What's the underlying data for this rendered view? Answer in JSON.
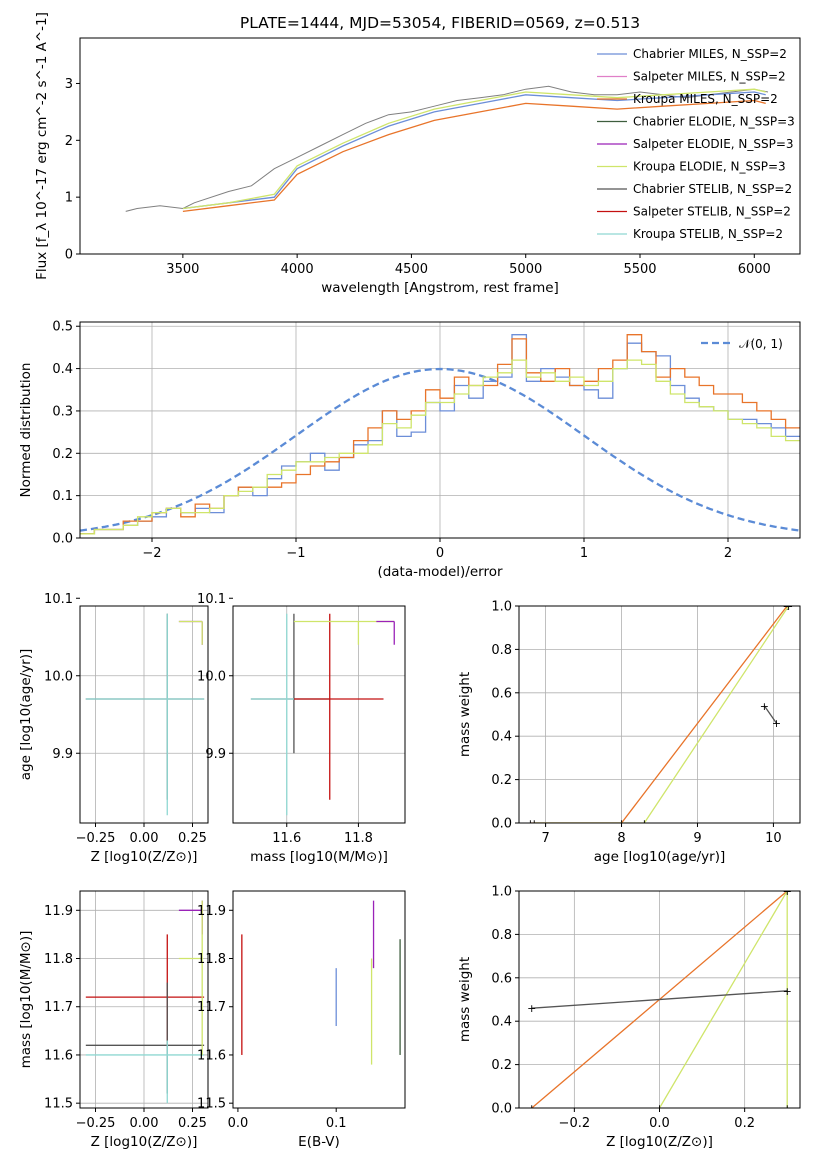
{
  "figure": {
    "title": "PLATE=1444, MJD=53054, FIBERID=0569, z=0.513"
  },
  "colors": {
    "Chabrier MILES": "#6c8ed8",
    "Salpeter MILES": "#e07fc8",
    "Kroupa MILES": "#e8742a",
    "Chabrier ELODIE": "#3e5e3e",
    "Salpeter ELODIE": "#9a22b8",
    "Kroupa ELODIE": "#cfe56a",
    "Chabrier STELIB": "#555555",
    "Salpeter STELIB": "#c41010",
    "Kroupa STELIB": "#8fd8d2",
    "data": "#808080",
    "normal": "#5b8bd6"
  },
  "chart_data": [
    {
      "type": "line",
      "title": "PLATE=1444, MJD=53054, FIBERID=0569, z=0.513",
      "xlabel": "wavelength [Angstrom, rest frame]",
      "ylabel": "Flux [f_λ 10^-17 erg cm^-2 s^-1 A^-1]",
      "xlim": [
        3050,
        6200
      ],
      "ylim": [
        0,
        3.8
      ],
      "xticks": [
        3500,
        4000,
        4500,
        5000,
        5500,
        6000
      ],
      "yticks": [
        0,
        1,
        2,
        3
      ],
      "legend": [
        "Chabrier MILES, N_SSP=2",
        "Salpeter MILES, N_SSP=2",
        "Kroupa MILES, N_SSP=2",
        "Chabrier ELODIE, N_SSP=3",
        "Salpeter ELODIE, N_SSP=3",
        "Kroupa ELODIE, N_SSP=3",
        "Chabrier STELIB, N_SSP=2",
        "Salpeter STELIB, N_SSP=2",
        "Kroupa STELIB, N_SSP=2"
      ],
      "legend_position": "top-right",
      "grid": false,
      "series": [
        {
          "name": "data",
          "x": [
            3250,
            3300,
            3400,
            3500,
            3550,
            3700,
            3800,
            3900,
            4000,
            4100,
            4200,
            4300,
            4400,
            4500,
            4600,
            4700,
            4800,
            4900,
            5000,
            5100,
            5200,
            5300,
            5400,
            5500,
            5600,
            5700,
            5800,
            5900,
            6000,
            6060
          ],
          "y": [
            0.75,
            0.8,
            0.85,
            0.8,
            0.9,
            1.1,
            1.2,
            1.5,
            1.7,
            1.9,
            2.1,
            2.3,
            2.45,
            2.5,
            2.6,
            2.7,
            2.75,
            2.8,
            2.9,
            2.95,
            2.85,
            2.8,
            2.8,
            2.85,
            2.8,
            2.75,
            2.8,
            2.85,
            2.9,
            2.85
          ]
        },
        {
          "name": "Chabrier MILES, N_SSP=2",
          "x": [
            3500,
            3700,
            3900,
            4000,
            4200,
            4400,
            4600,
            4800,
            5000,
            5200,
            5400,
            5600,
            5800,
            6000,
            6050
          ],
          "y": [
            0.8,
            0.9,
            1.0,
            1.5,
            1.9,
            2.25,
            2.5,
            2.65,
            2.8,
            2.75,
            2.7,
            2.75,
            2.8,
            2.85,
            2.8
          ]
        },
        {
          "name": "Kroupa MILES, N_SSP=2",
          "x": [
            3500,
            3700,
            3900,
            4000,
            4200,
            4400,
            4600,
            4800,
            5000,
            5200,
            5400,
            5600,
            5800,
            6000,
            6050
          ],
          "y": [
            0.75,
            0.85,
            0.95,
            1.4,
            1.8,
            2.1,
            2.35,
            2.5,
            2.65,
            2.6,
            2.55,
            2.6,
            2.65,
            2.7,
            2.65
          ]
        },
        {
          "name": "Kroupa ELODIE, N_SSP=3",
          "x": [
            3500,
            3700,
            3900,
            4000,
            4200,
            4400,
            4600,
            4800,
            5000,
            5200,
            5400,
            5600,
            5800,
            6000,
            6050
          ],
          "y": [
            0.8,
            0.9,
            1.05,
            1.55,
            1.95,
            2.3,
            2.55,
            2.7,
            2.85,
            2.8,
            2.75,
            2.8,
            2.85,
            2.9,
            2.85
          ]
        }
      ]
    },
    {
      "type": "line",
      "xlabel": "(data-model)/error",
      "ylabel": "Normed distribution",
      "xlim": [
        -2.5,
        2.5
      ],
      "ylim": [
        0,
        0.51
      ],
      "xticks": [
        -2,
        -1,
        0,
        1,
        2
      ],
      "yticks": [
        0.0,
        0.1,
        0.2,
        0.3,
        0.4,
        0.5
      ],
      "grid": true,
      "legend": [
        "𝒩(0, 1)"
      ],
      "legend_position": "top-right",
      "series": [
        {
          "name": "𝒩(0, 1)",
          "curve": "normal",
          "mean": 0,
          "std": 1
        },
        {
          "name": "Chabrier MILES, N_SSP=2",
          "step": true,
          "x0": -2.5,
          "dx": 0.1,
          "y": [
            0.01,
            0.02,
            0.02,
            0.03,
            0.04,
            0.05,
            0.07,
            0.06,
            0.07,
            0.06,
            0.1,
            0.12,
            0.1,
            0.14,
            0.17,
            0.18,
            0.2,
            0.16,
            0.19,
            0.22,
            0.23,
            0.3,
            0.24,
            0.25,
            0.32,
            0.3,
            0.36,
            0.33,
            0.37,
            0.38,
            0.48,
            0.37,
            0.4,
            0.38,
            0.36,
            0.35,
            0.33,
            0.4,
            0.46,
            0.44,
            0.43,
            0.36,
            0.33,
            0.31,
            0.3,
            0.28,
            0.28,
            0.27,
            0.26,
            0.24
          ]
        },
        {
          "name": "Kroupa MILES, N_SSP=2",
          "step": true,
          "x0": -2.5,
          "dx": 0.1,
          "y": [
            0.01,
            0.02,
            0.02,
            0.04,
            0.04,
            0.06,
            0.07,
            0.05,
            0.08,
            0.07,
            0.1,
            0.12,
            0.12,
            0.12,
            0.13,
            0.15,
            0.17,
            0.18,
            0.19,
            0.23,
            0.26,
            0.3,
            0.28,
            0.3,
            0.35,
            0.33,
            0.38,
            0.36,
            0.36,
            0.41,
            0.47,
            0.39,
            0.37,
            0.4,
            0.36,
            0.37,
            0.4,
            0.42,
            0.48,
            0.44,
            0.38,
            0.4,
            0.38,
            0.36,
            0.34,
            0.34,
            0.32,
            0.3,
            0.28,
            0.26
          ]
        },
        {
          "name": "Kroupa ELODIE, N_SSP=3",
          "step": true,
          "x0": -2.5,
          "dx": 0.1,
          "y": [
            0.01,
            0.02,
            0.02,
            0.03,
            0.05,
            0.06,
            0.07,
            0.06,
            0.06,
            0.07,
            0.1,
            0.11,
            0.12,
            0.15,
            0.16,
            0.18,
            0.18,
            0.19,
            0.2,
            0.2,
            0.22,
            0.27,
            0.26,
            0.29,
            0.32,
            0.32,
            0.34,
            0.36,
            0.38,
            0.39,
            0.42,
            0.38,
            0.39,
            0.37,
            0.38,
            0.36,
            0.37,
            0.4,
            0.42,
            0.41,
            0.37,
            0.34,
            0.32,
            0.31,
            0.3,
            0.28,
            0.27,
            0.26,
            0.24,
            0.23
          ]
        }
      ]
    },
    {
      "type": "scatter",
      "xlabel": "Z [log10(Z/Z⊙)]",
      "ylabel": "age  [log10(age/yr)]",
      "xlim": [
        -0.33,
        0.33
      ],
      "ylim": [
        9.81,
        10.09
      ],
      "xticks": [
        -0.25,
        0.0,
        0.25
      ],
      "yticks": [
        9.9,
        10.0,
        10.1
      ],
      "grid": true,
      "errorbars": [
        {
          "series": "Chabrier STELIB, N_SSP=2",
          "x": 0.12,
          "xerr": [
            0.42,
            0.19
          ],
          "y": 9.97,
          "yerr": [
            0.13,
            0.11
          ]
        },
        {
          "series": "Kroupa STELIB, N_SSP=2",
          "x": 0.12,
          "xerr": [
            0.42,
            0.19
          ],
          "y": 9.97,
          "yerr": [
            0.15,
            0.11
          ]
        },
        {
          "series": "Salpeter ELODIE, N_SSP=3",
          "x": 0.3,
          "xerr": [
            0.12,
            0
          ],
          "y": 10.07,
          "yerr": [
            0.03,
            0
          ]
        },
        {
          "series": "Kroupa ELODIE, N_SSP=3",
          "x": 0.3,
          "xerr": [
            0.12,
            0
          ],
          "y": 10.07,
          "yerr": [
            0.03,
            0
          ]
        }
      ]
    },
    {
      "type": "scatter",
      "xlabel": "mass [log10(M/M⊙)]",
      "ylabel": "",
      "xlim": [
        11.45,
        11.93
      ],
      "ylim": [
        9.81,
        10.09
      ],
      "xticks": [
        11.6,
        11.8
      ],
      "yticks": [
        9.9,
        10.0,
        10.1
      ],
      "grid": true,
      "errorbars": [
        {
          "series": "Chabrier STELIB, N_SSP=2",
          "x": 11.62,
          "xerr": [
            0.12,
            0.1
          ],
          "y": 9.97,
          "yerr": [
            0.07,
            0.11
          ]
        },
        {
          "series": "Salpeter STELIB, N_SSP=2",
          "x": 11.72,
          "xerr": [
            0.1,
            0.15
          ],
          "y": 9.97,
          "yerr": [
            0.13,
            0.11
          ]
        },
        {
          "series": "Kroupa STELIB, N_SSP=2",
          "x": 11.6,
          "xerr": [
            0.1,
            0.02
          ],
          "y": 9.97,
          "yerr": [
            0.15,
            0.11
          ]
        },
        {
          "series": "Kroupa ELODIE, N_SSP=3",
          "x": 11.8,
          "xerr": [
            0.18,
            0.1
          ],
          "y": 10.07,
          "yerr": [
            0.03,
            0
          ]
        },
        {
          "series": "Salpeter ELODIE, N_SSP=3",
          "x": 11.9,
          "xerr": [
            0.05,
            0
          ],
          "y": 10.07,
          "yerr": [
            0.03,
            0
          ]
        }
      ]
    },
    {
      "type": "line",
      "xlabel": "age  [log10(age/yr)]",
      "ylabel": "mass weight",
      "xlim": [
        6.65,
        10.35
      ],
      "ylim": [
        0,
        1.0
      ],
      "xticks": [
        7,
        8,
        9,
        10
      ],
      "yticks": [
        0.0,
        0.2,
        0.4,
        0.6,
        0.8,
        1.0
      ],
      "grid": true,
      "series": [
        {
          "name": "Kroupa MILES, N_SSP=2",
          "x": [
            6.8,
            8.0,
            10.18
          ],
          "y": [
            0.0,
            0.0,
            1.0
          ]
        },
        {
          "name": "Kroupa ELODIE, N_SSP=3",
          "x": [
            6.85,
            8.3,
            10.2
          ],
          "y": [
            0.0,
            0.0,
            1.0
          ]
        },
        {
          "name": "Chabrier STELIB, N_SSP=2",
          "x": [
            9.88,
            10.04
          ],
          "y": [
            0.54,
            0.46
          ]
        }
      ]
    },
    {
      "type": "scatter",
      "xlabel": "Z [log10(Z/Z⊙)]",
      "ylabel": "mass [log10(M/M⊙)]",
      "xlim": [
        -0.33,
        0.33
      ],
      "ylim": [
        11.49,
        11.94
      ],
      "xticks": [
        -0.25,
        0.0,
        0.25
      ],
      "yticks": [
        11.5,
        11.6,
        11.7,
        11.8,
        11.9
      ],
      "grid": true,
      "errorbars": [
        {
          "series": "Salpeter STELIB, N_SSP=2",
          "x": 0.12,
          "xerr": [
            0.42,
            0.19
          ],
          "y": 11.72,
          "yerr": [
            0.1,
            0.13
          ]
        },
        {
          "series": "Chabrier STELIB, N_SSP=2",
          "x": 0.12,
          "xerr": [
            0.42,
            0.19
          ],
          "y": 11.62,
          "yerr": [
            0.1,
            0.13
          ]
        },
        {
          "series": "Kroupa STELIB, N_SSP=2",
          "x": 0.12,
          "xerr": [
            0.42,
            0.19
          ],
          "y": 11.6,
          "yerr": [
            0.1,
            0.03
          ]
        },
        {
          "series": "Salpeter ELODIE, N_SSP=3",
          "x": 0.3,
          "xerr": [
            0.12,
            0
          ],
          "y": 11.9,
          "yerr": [
            0.05,
            0.02
          ]
        },
        {
          "series": "Kroupa ELODIE, N_SSP=3",
          "x": 0.3,
          "xerr": [
            0.12,
            0
          ],
          "y": 11.8,
          "yerr": [
            0.2,
            0.12
          ]
        }
      ]
    },
    {
      "type": "scatter",
      "xlabel": "E(B-V)",
      "ylabel": "",
      "xlim": [
        -0.005,
        0.17
      ],
      "ylim": [
        11.49,
        11.94
      ],
      "xticks": [
        0.0,
        0.1
      ],
      "yticks": [
        11.5,
        11.6,
        11.7,
        11.8,
        11.9
      ],
      "grid": false,
      "errorbars": [
        {
          "series": "Chabrier MILES, N_SSP=2",
          "x": 0.1,
          "xerr": [
            0,
            0
          ],
          "y": 11.72,
          "yerr": [
            0.06,
            0.06
          ]
        },
        {
          "series": "Salpeter ELODIE, N_SSP=3",
          "x": 0.138,
          "xerr": [
            0,
            0
          ],
          "y": 11.85,
          "yerr": [
            0.07,
            0.07
          ]
        },
        {
          "series": "Kroupa ELODIE, N_SSP=3",
          "x": 0.136,
          "xerr": [
            0,
            0
          ],
          "y": 11.72,
          "yerr": [
            0.14,
            0.08
          ]
        },
        {
          "series": "Chabrier ELODIE, N_SSP=3",
          "x": 0.165,
          "xerr": [
            0,
            0
          ],
          "y": 11.72,
          "yerr": [
            0.12,
            0.12
          ]
        },
        {
          "series": "Salpeter STELIB, N_SSP=2",
          "x": 0.004,
          "xerr": [
            0,
            0
          ],
          "y": 11.72,
          "yerr": [
            0.12,
            0.13
          ]
        }
      ]
    },
    {
      "type": "line",
      "xlabel": "Z [log10(Z/Z⊙)]",
      "ylabel": "mass weight",
      "xlim": [
        -0.33,
        0.33
      ],
      "ylim": [
        0,
        1.0
      ],
      "xticks": [
        -0.2,
        0.0,
        0.2
      ],
      "yticks": [
        0.0,
        0.2,
        0.4,
        0.6,
        0.8,
        1.0
      ],
      "grid": true,
      "series": [
        {
          "name": "Kroupa MILES, N_SSP=2",
          "x": [
            -0.3,
            0.3
          ],
          "y": [
            0.0,
            1.0
          ]
        },
        {
          "name": "Kroupa ELODIE, N_SSP=3",
          "x": [
            0.0,
            0.3,
            0.3
          ],
          "y": [
            0.0,
            1.0,
            0.0
          ]
        },
        {
          "name": "Chabrier STELIB, N_SSP=2",
          "x": [
            -0.3,
            0.3
          ],
          "y": [
            0.46,
            0.54
          ]
        }
      ]
    }
  ]
}
